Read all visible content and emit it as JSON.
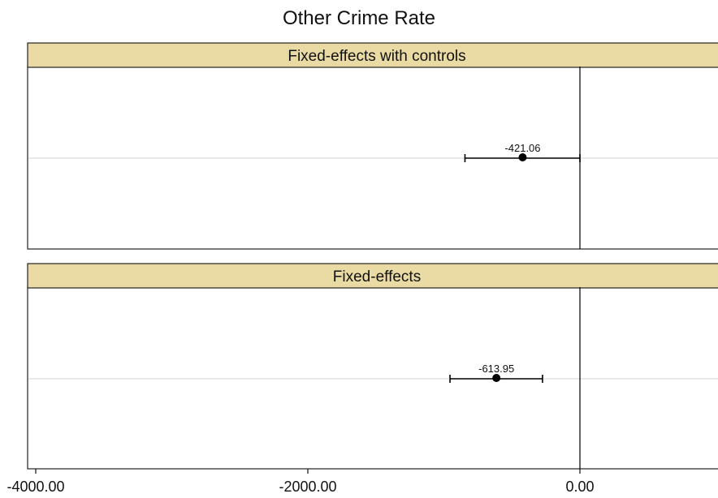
{
  "chart_data": {
    "type": "scatter",
    "title": "Other Crime Rate",
    "xlabel": "",
    "ylabel": "",
    "xlim": [
      -4100,
      1030
    ],
    "reference_line_x": 0,
    "grid": false,
    "legend": "none",
    "x_ticks": [
      -4000,
      -2000,
      0
    ],
    "x_tick_labels": [
      "-4000.00",
      "-2000.00",
      "0.00"
    ],
    "panels": [
      {
        "label": "Fixed-effects with controls",
        "estimate": -421.06,
        "estimate_label": "-421.06",
        "ci": [
          -845,
          0
        ]
      },
      {
        "label": "Fixed-effects",
        "estimate": -613.95,
        "estimate_label": "-613.95",
        "ci": [
          -955,
          -275
        ]
      }
    ]
  },
  "colors": {
    "strip_fill": "#eadba5",
    "frame": "#222222",
    "baseline": "#dcdcdc",
    "marker": "#000000",
    "background": "#ffffff"
  }
}
